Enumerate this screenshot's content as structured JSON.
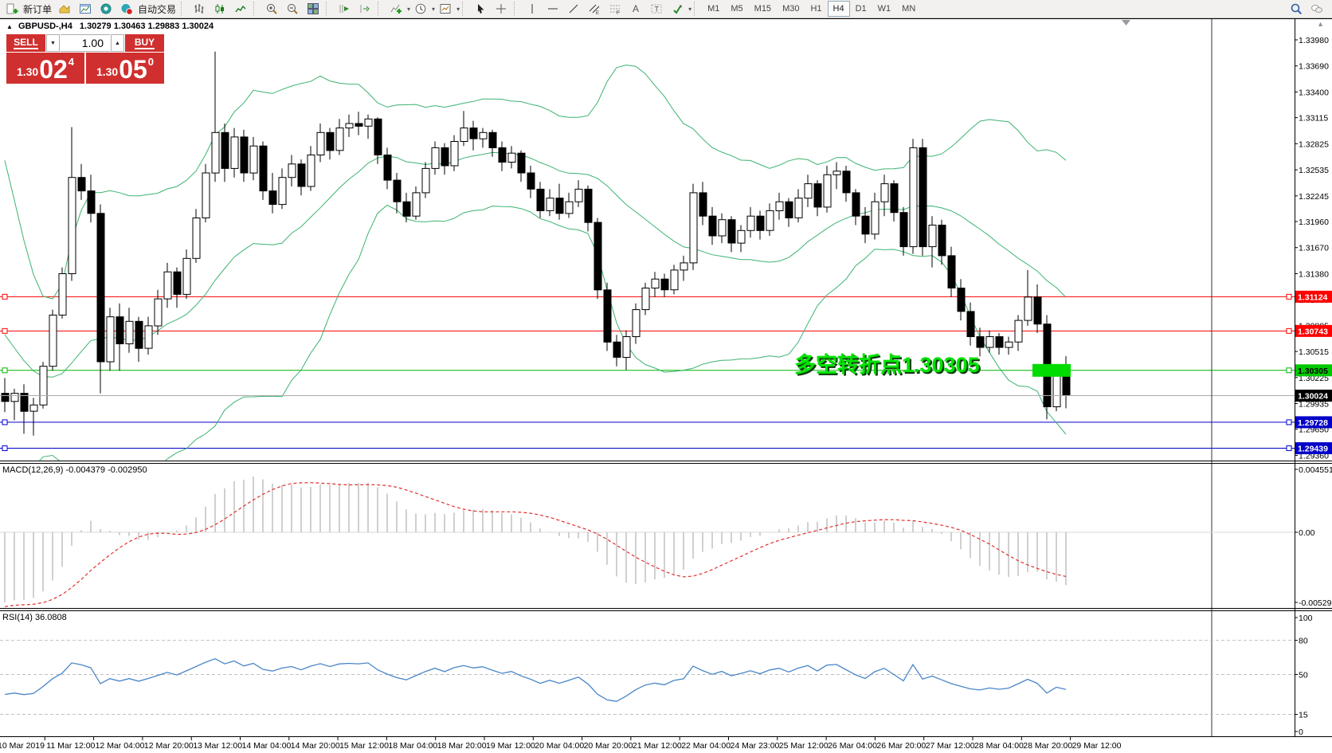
{
  "toolbar": {
    "groups": [
      {
        "name": "trade",
        "items": [
          {
            "icon": "new-order-icon",
            "label": "新订单"
          },
          {
            "icon": "chart-profile-icon"
          },
          {
            "icon": "new-chart-icon"
          },
          {
            "icon": "data-window-icon"
          },
          {
            "icon": "autotrading-icon",
            "label": "自动交易"
          }
        ]
      },
      {
        "name": "chart-type",
        "items": [
          {
            "icon": "bars-icon"
          },
          {
            "icon": "candles-icon"
          },
          {
            "icon": "line-chart-icon"
          }
        ]
      },
      {
        "name": "zoom",
        "items": [
          {
            "icon": "zoom-in-icon"
          },
          {
            "icon": "zoom-out-icon"
          },
          {
            "icon": "tile-windows-icon"
          }
        ]
      },
      {
        "name": "scroll",
        "items": [
          {
            "icon": "autoscroll-icon"
          },
          {
            "icon": "chart-shift-icon"
          }
        ]
      },
      {
        "name": "insert",
        "items": [
          {
            "icon": "indicators-icon",
            "dropdown": true
          },
          {
            "icon": "periods-icon",
            "dropdown": true
          },
          {
            "icon": "templates-icon",
            "dropdown": true
          }
        ]
      },
      {
        "name": "pointer",
        "items": [
          {
            "icon": "cursor-icon"
          },
          {
            "icon": "crosshair-icon"
          }
        ]
      },
      {
        "name": "objects",
        "items": [
          {
            "icon": "vline-icon"
          },
          {
            "icon": "hline-icon"
          },
          {
            "icon": "trendline-icon"
          },
          {
            "icon": "channel-icon"
          },
          {
            "icon": "fibo-icon"
          },
          {
            "icon": "text-icon"
          },
          {
            "icon": "label-icon"
          },
          {
            "icon": "arrows-icon",
            "dropdown": true
          }
        ]
      }
    ],
    "timeframes": [
      "M1",
      "M5",
      "M15",
      "M30",
      "H1",
      "H4",
      "D1",
      "W1",
      "MN"
    ],
    "active_timeframe": "H4",
    "right_icons": [
      "search-icon",
      "chat-icon"
    ]
  },
  "title_bar": {
    "symbol": "GBPUSD-,H4",
    "ohlc": "1.30279 1.30463 1.29883 1.30024"
  },
  "trade_panel": {
    "sell_label": "SELL",
    "buy_label": "BUY",
    "volume": "1.00",
    "sell_price_main": "1.30",
    "sell_price_big": "02",
    "sell_price_pip": "4",
    "buy_price_main": "1.30",
    "buy_price_big": "05",
    "buy_price_pip": "0"
  },
  "chart_data": {
    "type": "candlestick",
    "symbol": "GBPUSD",
    "timeframe": "H4",
    "price_axis_ticks": [
      "1.33980",
      "1.33690",
      "1.33400",
      "1.33115",
      "1.32825",
      "1.32535",
      "1.32245",
      "1.31960",
      "1.31670",
      "1.31380",
      "1.31090",
      "1.30805",
      "1.30515",
      "1.30225",
      "1.29935",
      "1.29650",
      "1.29360"
    ],
    "badges": [
      {
        "text": "1.31124",
        "bg": "#FF0000",
        "fg": "#FFFFFF"
      },
      {
        "text": "1.30743",
        "bg": "#FF0000",
        "fg": "#FFFFFF"
      },
      {
        "text": "1.30305",
        "bg": "#00C800",
        "fg": "#000000"
      },
      {
        "text": "1.30024",
        "bg": "#000000",
        "fg": "#FFFFFF"
      },
      {
        "text": "1.29728",
        "bg": "#0000C8",
        "fg": "#FFFFFF"
      },
      {
        "text": "1.29439",
        "bg": "#0000C8",
        "fg": "#FFFFFF"
      }
    ],
    "horizontal_lines": [
      {
        "price": 1.31124,
        "color": "#FF0000"
      },
      {
        "price": 1.30743,
        "color": "#FF0000"
      },
      {
        "price": 1.30305,
        "color": "#00B400"
      },
      {
        "price": 1.29728,
        "color": "#0000CC"
      },
      {
        "price": 1.29439,
        "color": "#0000CC"
      }
    ],
    "bid_price": 1.30024,
    "vertical_line_object": true,
    "annotation": {
      "text": "多空转折点1.30305",
      "color": "#00E400",
      "bar_color": "#00DC00"
    },
    "bollinger": {
      "period": 20,
      "deviation": 2,
      "color": "#3CB371"
    },
    "time_axis_labels": [
      "10 Mar 2019",
      "11 Mar 12:00",
      "12 Mar 04:00",
      "12 Mar 20:00",
      "13 Mar 12:00",
      "14 Mar 04:00",
      "14 Mar 20:00",
      "15 Mar 12:00",
      "18 Mar 04:00",
      "18 Mar 20:00",
      "19 Mar 12:00",
      "20 Mar 04:00",
      "20 Mar 20:00",
      "21 Mar 12:00",
      "22 Mar 04:00",
      "24 Mar 23:00",
      "25 Mar 12:00",
      "26 Mar 04:00",
      "26 Mar 20:00",
      "27 Mar 12:00",
      "28 Mar 04:00",
      "28 Mar 20:00",
      "29 Mar 12:00"
    ],
    "macd": {
      "label": "MACD(12,26,9) -0.004379 -0.002950",
      "axis_labels": [
        "0.004551",
        "0.00",
        "-0.005295"
      ],
      "fast": 12,
      "slow": 26,
      "signal": 9,
      "histogram_color": "#C4C4C4",
      "signal_color": "#E03030"
    },
    "rsi": {
      "label": "RSI(14) 36.0808",
      "axis_labels": [
        "100",
        "80",
        "50",
        "15",
        "0"
      ],
      "levels": [
        80,
        50,
        15
      ],
      "period": 14,
      "line_color": "#4A86C8"
    },
    "candles": [
      [
        1.3005,
        1.3022,
        1.2984,
        1.2996
      ],
      [
        1.2996,
        1.301,
        1.2975,
        1.3005
      ],
      [
        1.3005,
        1.3015,
        1.296,
        1.2985
      ],
      [
        1.2985,
        1.3,
        1.2958,
        1.2992
      ],
      [
        1.2992,
        1.304,
        1.2988,
        1.3035
      ],
      [
        1.3035,
        1.3098,
        1.303,
        1.3092
      ],
      [
        1.3092,
        1.3145,
        1.3088,
        1.3138
      ],
      [
        1.3138,
        1.3301,
        1.313,
        1.3245
      ],
      [
        1.3245,
        1.326,
        1.322,
        1.323
      ],
      [
        1.323,
        1.3248,
        1.3195,
        1.3205
      ],
      [
        1.3205,
        1.3215,
        1.3005,
        1.304
      ],
      [
        1.304,
        1.31,
        1.303,
        1.309
      ],
      [
        1.309,
        1.3105,
        1.303,
        1.306
      ],
      [
        1.306,
        1.31,
        1.305,
        1.3085
      ],
      [
        1.3085,
        1.309,
        1.304,
        1.3055
      ],
      [
        1.3055,
        1.309,
        1.3048,
        1.308
      ],
      [
        1.308,
        1.312,
        1.307,
        1.311
      ],
      [
        1.311,
        1.315,
        1.31,
        1.314
      ],
      [
        1.314,
        1.3145,
        1.31,
        1.3115
      ],
      [
        1.3115,
        1.3165,
        1.311,
        1.3155
      ],
      [
        1.3155,
        1.321,
        1.315,
        1.32
      ],
      [
        1.32,
        1.326,
        1.3195,
        1.325
      ],
      [
        1.325,
        1.3385,
        1.324,
        1.3295
      ],
      [
        1.3295,
        1.3305,
        1.324,
        1.3255
      ],
      [
        1.3255,
        1.33,
        1.3245,
        1.329
      ],
      [
        1.329,
        1.3298,
        1.324,
        1.325
      ],
      [
        1.325,
        1.329,
        1.3242,
        1.328
      ],
      [
        1.328,
        1.3285,
        1.322,
        1.323
      ],
      [
        1.323,
        1.325,
        1.3205,
        1.3215
      ],
      [
        1.3215,
        1.3255,
        1.321,
        1.3245
      ],
      [
        1.3245,
        1.327,
        1.3235,
        1.326
      ],
      [
        1.326,
        1.3265,
        1.3225,
        1.3235
      ],
      [
        1.3235,
        1.328,
        1.323,
        1.327
      ],
      [
        1.327,
        1.3305,
        1.3262,
        1.3295
      ],
      [
        1.3295,
        1.33,
        1.3265,
        1.3275
      ],
      [
        1.3275,
        1.331,
        1.327,
        1.33
      ],
      [
        1.33,
        1.3315,
        1.329,
        1.3305
      ],
      [
        1.3305,
        1.3318,
        1.3292,
        1.3302
      ],
      [
        1.3302,
        1.3315,
        1.3288,
        1.331
      ],
      [
        1.331,
        1.3312,
        1.326,
        1.327
      ],
      [
        1.327,
        1.3278,
        1.3232,
        1.3242
      ],
      [
        1.3242,
        1.325,
        1.3205,
        1.3218
      ],
      [
        1.3218,
        1.3228,
        1.3195,
        1.3202
      ],
      [
        1.3202,
        1.3235,
        1.3198,
        1.3228
      ],
      [
        1.3228,
        1.3262,
        1.3222,
        1.3255
      ],
      [
        1.3255,
        1.3285,
        1.3248,
        1.3278
      ],
      [
        1.3278,
        1.3283,
        1.3248,
        1.3258
      ],
      [
        1.3258,
        1.3292,
        1.3252,
        1.3285
      ],
      [
        1.3285,
        1.3319,
        1.328,
        1.33
      ],
      [
        1.33,
        1.3308,
        1.3275,
        1.3288
      ],
      [
        1.3288,
        1.33,
        1.3278,
        1.3295
      ],
      [
        1.3295,
        1.3298,
        1.3268,
        1.3278
      ],
      [
        1.3278,
        1.3285,
        1.3252,
        1.3262
      ],
      [
        1.3262,
        1.328,
        1.3255,
        1.3272
      ],
      [
        1.3272,
        1.3275,
        1.324,
        1.325
      ],
      [
        1.325,
        1.3258,
        1.3222,
        1.3232
      ],
      [
        1.3232,
        1.324,
        1.32,
        1.3208
      ],
      [
        1.3208,
        1.3232,
        1.3202,
        1.3222
      ],
      [
        1.3222,
        1.3238,
        1.3198,
        1.3205
      ],
      [
        1.3205,
        1.3228,
        1.32,
        1.3218
      ],
      [
        1.3218,
        1.3242,
        1.3212,
        1.3232
      ],
      [
        1.3232,
        1.3236,
        1.3185,
        1.3195
      ],
      [
        1.3195,
        1.32,
        1.311,
        1.312
      ],
      [
        1.312,
        1.3128,
        1.3052,
        1.3062
      ],
      [
        1.3062,
        1.307,
        1.3035,
        1.3045
      ],
      [
        1.3045,
        1.3075,
        1.3031,
        1.3068
      ],
      [
        1.3068,
        1.3105,
        1.306,
        1.3098
      ],
      [
        1.3098,
        1.3128,
        1.3092,
        1.3122
      ],
      [
        1.3122,
        1.314,
        1.3112,
        1.3132
      ],
      [
        1.3132,
        1.3138,
        1.3112,
        1.312
      ],
      [
        1.312,
        1.3148,
        1.3115,
        1.3142
      ],
      [
        1.3142,
        1.3158,
        1.313,
        1.315
      ],
      [
        1.315,
        1.3238,
        1.3142,
        1.3228
      ],
      [
        1.3228,
        1.324,
        1.3192,
        1.3202
      ],
      [
        1.3202,
        1.3212,
        1.317,
        1.318
      ],
      [
        1.318,
        1.3205,
        1.3172,
        1.3198
      ],
      [
        1.3198,
        1.3202,
        1.3162,
        1.3172
      ],
      [
        1.3172,
        1.3192,
        1.3162,
        1.3186
      ],
      [
        1.3186,
        1.3212,
        1.3178,
        1.3202
      ],
      [
        1.3202,
        1.3208,
        1.3176,
        1.3186
      ],
      [
        1.3186,
        1.3216,
        1.318,
        1.3208
      ],
      [
        1.3208,
        1.3228,
        1.3198,
        1.3218
      ],
      [
        1.3218,
        1.3222,
        1.319,
        1.32
      ],
      [
        1.32,
        1.3232,
        1.3195,
        1.3222
      ],
      [
        1.3222,
        1.3248,
        1.3212,
        1.3238
      ],
      [
        1.3238,
        1.3242,
        1.3202,
        1.3212
      ],
      [
        1.3212,
        1.3258,
        1.3206,
        1.3248
      ],
      [
        1.3248,
        1.3262,
        1.3232,
        1.3252
      ],
      [
        1.3252,
        1.3258,
        1.3218,
        1.3228
      ],
      [
        1.3228,
        1.3232,
        1.3192,
        1.3202
      ],
      [
        1.3202,
        1.3212,
        1.3172,
        1.3182
      ],
      [
        1.3182,
        1.3228,
        1.3176,
        1.3218
      ],
      [
        1.3218,
        1.3248,
        1.3202,
        1.3238
      ],
      [
        1.3238,
        1.3242,
        1.3196,
        1.3206
      ],
      [
        1.3206,
        1.3212,
        1.3158,
        1.3168
      ],
      [
        1.3168,
        1.3288,
        1.316,
        1.3278
      ],
      [
        1.3278,
        1.3288,
        1.3158,
        1.3168
      ],
      [
        1.3168,
        1.3202,
        1.3145,
        1.3192
      ],
      [
        1.3192,
        1.3198,
        1.3148,
        1.3158
      ],
      [
        1.3158,
        1.3168,
        1.3112,
        1.3122
      ],
      [
        1.3122,
        1.3132,
        1.3086,
        1.3096
      ],
      [
        1.3096,
        1.3106,
        1.3058,
        1.3068
      ],
      [
        1.3068,
        1.3078,
        1.3046,
        1.3056
      ],
      [
        1.3056,
        1.3075,
        1.305,
        1.3068
      ],
      [
        1.3068,
        1.3072,
        1.3048,
        1.3056
      ],
      [
        1.3056,
        1.3068,
        1.3048,
        1.3062
      ],
      [
        1.3062,
        1.3092,
        1.3052,
        1.3086
      ],
      [
        1.3086,
        1.3142,
        1.308,
        1.3112
      ],
      [
        1.3112,
        1.3126,
        1.3072,
        1.3082
      ],
      [
        1.3082,
        1.3092,
        1.2976,
        1.299
      ],
      [
        1.299,
        1.3035,
        1.2985,
        1.3026
      ],
      [
        1.30279,
        1.30463,
        1.29883,
        1.30024
      ]
    ]
  }
}
